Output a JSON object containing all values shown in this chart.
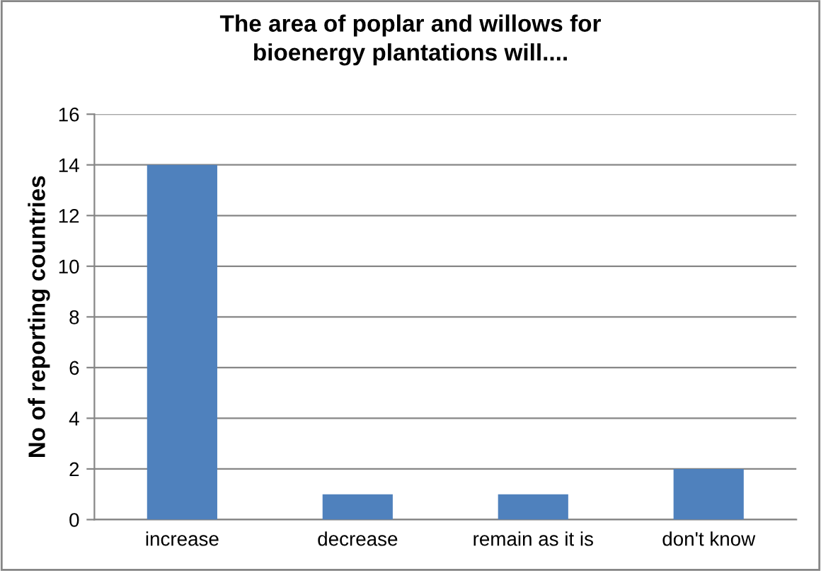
{
  "chart_data": {
    "type": "bar",
    "title": "The area of poplar and willows for\nbioenergy plantations will....",
    "ylabel": "No of reporting countries",
    "categories": [
      "increase",
      "decrease",
      "remain as it is",
      "don't know"
    ],
    "values": [
      14,
      1,
      1,
      2
    ],
    "color": "#4f81bd",
    "ylim": [
      0,
      16
    ],
    "yticks": [
      0,
      2,
      4,
      6,
      8,
      10,
      12,
      14,
      16
    ],
    "grid": "y",
    "legend": false
  }
}
